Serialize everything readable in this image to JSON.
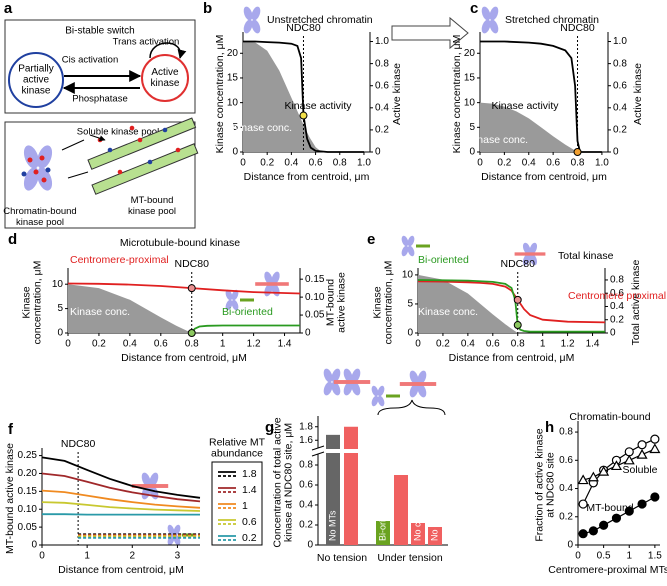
{
  "diagram": {
    "label": "a",
    "switch_title": "Bi-stable switch",
    "nodes": [
      [
        "Partially",
        "active",
        "kinase"
      ],
      [
        "Active",
        "kinase"
      ]
    ],
    "edges": [
      "Trans activation",
      "Cis activation",
      "Phosphatase"
    ],
    "pools": [
      [
        "Soluble kinase pool"
      ],
      [
        "Chromatin-bound",
        "kinase pool"
      ],
      [
        "MT-bound",
        "kinase pool"
      ]
    ]
  },
  "chart_data": [
    {
      "label": "b",
      "type": "line",
      "title": "Unstretched chromatin",
      "xlabel": "Distance from centroid, μm",
      "ylabel": "Kinase concentration, μM",
      "y2label": "Active kinase",
      "xlim": [
        0,
        1.05
      ],
      "xticks": [
        0,
        0.2,
        0.4,
        0.6,
        0.8,
        {
          "value": 1,
          "label": "1.0"
        }
      ],
      "ylim": [
        0,
        23.5
      ],
      "yticks": [
        0,
        5,
        10,
        15,
        20
      ],
      "y2lim": [
        0,
        1.05
      ],
      "y2ticks": [
        0,
        0.2,
        0.4,
        0.6,
        0.8,
        {
          "value": 1,
          "label": "1.0"
        }
      ],
      "series": [
        {
          "name": "Kinase conc.",
          "color": "#9a9a9a",
          "style": "area",
          "x": [
            0,
            0.1,
            0.2,
            0.3,
            0.4,
            0.5,
            0.55,
            0.6,
            0.65
          ],
          "values": [
            22.5,
            22.2,
            20.5,
            16.5,
            11,
            5.5,
            3,
            1,
            0
          ]
        },
        {
          "name": "Kinase activity",
          "color": "#000000",
          "style": "line",
          "axis": "y2",
          "x": [
            0,
            0.1,
            0.2,
            0.3,
            0.4,
            0.45,
            0.48,
            0.5,
            0.53,
            0.56,
            0.6,
            0.7,
            0.8,
            0.9,
            1.0
          ],
          "values": [
            1,
            1,
            0.995,
            0.99,
            0.98,
            0.96,
            0.85,
            0.33,
            0.12,
            0.04,
            0.01,
            0,
            0,
            0,
            0
          ]
        }
      ],
      "vline": {
        "label": "NDC80",
        "x": 0.5
      },
      "markers": [
        {
          "x": 0.5,
          "y": 0.33,
          "axis": "y2",
          "color": "#f2e04a"
        }
      ]
    },
    {
      "label": "c",
      "type": "line",
      "title": "Stretched chromatin",
      "xlabel": "Distance from centroid, μm",
      "ylabel": "Kinase concentration, μM",
      "y2label": "Active kinase",
      "xlim": [
        0,
        1.05
      ],
      "xticks": [
        0,
        0.2,
        0.4,
        0.6,
        0.8,
        {
          "value": 1,
          "label": "1.0"
        }
      ],
      "ylim": [
        0,
        23.5
      ],
      "yticks": [
        0,
        5,
        10,
        15,
        20
      ],
      "y2lim": [
        0,
        1.05
      ],
      "y2ticks": [
        0,
        0.2,
        0.4,
        0.6,
        0.8,
        {
          "value": 1,
          "label": "1.0"
        }
      ],
      "series": [
        {
          "name": "Kinase conc.",
          "color": "#9a9a9a",
          "style": "area",
          "x": [
            0,
            0.1,
            0.2,
            0.3,
            0.4,
            0.5,
            0.6,
            0.7,
            0.8
          ],
          "values": [
            10,
            9.8,
            9.2,
            8.2,
            6.8,
            5,
            3.2,
            1.5,
            0
          ]
        },
        {
          "name": "Kinase activity",
          "color": "#000000",
          "style": "line",
          "axis": "y2",
          "x": [
            0,
            0.2,
            0.4,
            0.5,
            0.6,
            0.7,
            0.75,
            0.78,
            0.8,
            0.82,
            1.0
          ],
          "values": [
            1,
            1,
            0.99,
            0.98,
            0.96,
            0.92,
            0.85,
            0.6,
            0.1,
            0,
            0
          ]
        }
      ],
      "vline": {
        "label": "NDC80",
        "x": 0.8
      },
      "markers": [
        {
          "x": 0.8,
          "y": 0,
          "axis": "y2",
          "color": "#f2a030"
        }
      ]
    },
    {
      "label": "d",
      "type": "line",
      "title": "Microtubule-bound kinase",
      "xlabel": "Distance from centroid, μM",
      "ylabel": [
        "Kinase",
        "concentration, μM"
      ],
      "y2label": [
        "MT-bound",
        "active kinase"
      ],
      "xlim": [
        0,
        1.5
      ],
      "xticks": [
        0,
        0.2,
        0.4,
        0.6,
        0.8,
        1,
        1.2,
        1.4
      ],
      "ylim": [
        0,
        12.5
      ],
      "yticks": [
        0,
        5,
        10
      ],
      "y2lim": [
        0,
        0.17
      ],
      "y2ticks": [
        0,
        0.05,
        {
          "value": 0.1,
          "label": "0.10"
        },
        0.15
      ],
      "series": [
        {
          "name": "Kinase conc.",
          "color": "#9a9a9a",
          "style": "area",
          "x": [
            0,
            0.2,
            0.4,
            0.6,
            0.7,
            0.8
          ],
          "values": [
            10,
            9.2,
            6.8,
            3.2,
            1.5,
            0
          ]
        },
        {
          "name": "Centromere-proximal",
          "color": "#e02020",
          "style": "line",
          "axis": "y2",
          "x": [
            0,
            0.2,
            0.4,
            0.6,
            0.8,
            1.0,
            1.2,
            1.5
          ],
          "values": [
            0.138,
            0.137,
            0.135,
            0.131,
            0.125,
            0.119,
            0.114,
            0.11
          ]
        },
        {
          "name": "Bi-oriented",
          "color": "#2a9a20",
          "style": "line",
          "axis": "y2",
          "x": [
            0.8,
            0.82,
            0.85,
            0.9,
            1.0,
            1.5
          ],
          "values": [
            0,
            0.012,
            0.018,
            0.02,
            0.021,
            0.021
          ]
        }
      ],
      "vline": {
        "label": "NDC80",
        "x": 0.8
      },
      "markers": [
        {
          "x": 0.8,
          "y": 0.125,
          "axis": "y2",
          "color": "#e89090"
        },
        {
          "x": 0.8,
          "y": 0,
          "axis": "y2",
          "color": "#8cc860"
        }
      ]
    },
    {
      "label": "e",
      "type": "line",
      "title": "Total kinase",
      "xlabel": "Distance from centroid, μM",
      "ylabel": [
        "Kinase",
        "concentration, μM"
      ],
      "y2label": "Total active kinase",
      "xlim": [
        0,
        1.5
      ],
      "xticks": [
        0,
        0.2,
        0.4,
        0.6,
        0.8,
        1,
        1.2,
        1.4
      ],
      "ylim": [
        0,
        10.5
      ],
      "yticks": [
        0,
        5,
        10
      ],
      "y2lim": [
        0,
        0.92
      ],
      "y2ticks": [
        0,
        0.2,
        0.4,
        0.6,
        0.8
      ],
      "series": [
        {
          "name": "Kinase conc.",
          "color": "#9a9a9a",
          "style": "area",
          "x": [
            0,
            0.2,
            0.4,
            0.6,
            0.7,
            0.8
          ],
          "values": [
            10,
            9.2,
            6.8,
            3.2,
            1.5,
            0
          ]
        },
        {
          "name": "Centromere proximal",
          "color": "#e02020",
          "style": "line",
          "axis": "y2",
          "x": [
            0,
            0.2,
            0.4,
            0.5,
            0.6,
            0.7,
            0.75,
            0.8,
            0.85,
            0.9,
            1.0,
            1.2,
            1.5
          ],
          "values": [
            0.78,
            0.775,
            0.765,
            0.755,
            0.74,
            0.7,
            0.64,
            0.5,
            0.36,
            0.27,
            0.2,
            0.17,
            0.16
          ]
        },
        {
          "name": "Bi-oriented",
          "color": "#2a9a20",
          "style": "line",
          "axis": "y2",
          "x": [
            0,
            0.2,
            0.4,
            0.6,
            0.7,
            0.75,
            0.78,
            0.8,
            0.82,
            0.85,
            0.9,
            1.5
          ],
          "values": [
            0.8,
            0.795,
            0.79,
            0.77,
            0.74,
            0.68,
            0.5,
            0.12,
            0.05,
            0.03,
            0.02,
            0.02
          ]
        }
      ],
      "vline": {
        "label": "NDC80",
        "x": 0.8
      },
      "markers": [
        {
          "x": 0.8,
          "y": 0.5,
          "axis": "y2",
          "color": "#e89090"
        },
        {
          "x": 0.8,
          "y": 0.12,
          "axis": "y2",
          "color": "#8cc860"
        }
      ]
    },
    {
      "label": "f",
      "type": "line",
      "xlabel": "Distance from centroid, μM",
      "ylabel": "MT-bound active kinase",
      "xlim": [
        0,
        3.5
      ],
      "xticks": [
        0,
        1,
        2,
        3
      ],
      "ylim": [
        0,
        0.26
      ],
      "yticks": [
        0,
        0.05,
        {
          "value": 0.1,
          "label": "0.10"
        },
        0.15,
        {
          "value": 0.2,
          "label": "0.20"
        },
        0.25
      ],
      "legend": {
        "title": [
          "Relative MT",
          "abundance"
        ]
      },
      "series": [
        {
          "name": "1.8",
          "color": "#000000",
          "style": "line",
          "x": [
            0,
            0.5,
            1,
            1.5,
            2,
            2.5,
            3,
            3.5
          ],
          "values": [
            0.245,
            0.235,
            0.21,
            0.185,
            0.165,
            0.15,
            0.14,
            0.132
          ]
        },
        {
          "name": "1.4",
          "color": "#a0282a",
          "style": "line",
          "x": [
            0,
            0.5,
            1,
            1.5,
            2,
            2.5,
            3,
            3.5
          ],
          "values": [
            0.2,
            0.193,
            0.177,
            0.16,
            0.147,
            0.137,
            0.128,
            0.122
          ]
        },
        {
          "name": "1",
          "color": "#f08a20",
          "style": "line",
          "x": [
            0,
            0.5,
            1,
            1.5,
            2,
            2.5,
            3,
            3.5
          ],
          "values": [
            0.152,
            0.148,
            0.138,
            0.128,
            0.12,
            0.113,
            0.108,
            0.104
          ]
        },
        {
          "name": "0.6",
          "color": "#c8c830",
          "style": "line",
          "x": [
            0,
            0.5,
            1,
            1.5,
            2,
            2.5,
            3,
            3.5
          ],
          "values": [
            0.12,
            0.118,
            0.112,
            0.106,
            0.102,
            0.099,
            0.097,
            0.095
          ]
        },
        {
          "name": "0.2",
          "color": "#2a9aa8",
          "style": "line",
          "x": [
            0,
            0.5,
            1,
            1.5,
            2,
            2.5,
            3,
            3.5
          ],
          "values": [
            0.086,
            0.086,
            0.085,
            0.085,
            0.085,
            0.085,
            0.085,
            0.085
          ]
        },
        {
          "color": "#000000",
          "style": "dashed",
          "x": [
            0.8,
            1.5,
            2.5,
            3.5
          ],
          "values": [
            0.03,
            0.03,
            0.03,
            0.03
          ]
        },
        {
          "color": "#a0282a",
          "style": "dashed",
          "x": [
            0.8,
            1.5,
            2.5,
            3.5
          ],
          "values": [
            0.028,
            0.028,
            0.028,
            0.028
          ]
        },
        {
          "color": "#f08a20",
          "style": "dashed",
          "x": [
            0.8,
            1.5,
            2.5,
            3.5
          ],
          "values": [
            0.026,
            0.026,
            0.026,
            0.026
          ]
        },
        {
          "color": "#c8c830",
          "style": "dashed",
          "x": [
            0.8,
            1.5,
            2.5,
            3.5
          ],
          "values": [
            0.024,
            0.024,
            0.024,
            0.024
          ]
        },
        {
          "color": "#2a9aa8",
          "style": "dashed",
          "x": [
            0.8,
            1.5,
            2.5,
            3.5
          ],
          "values": [
            0.02,
            0.02,
            0.02,
            0.02
          ]
        }
      ],
      "vline": {
        "label": "NDC80",
        "x": 0.8
      }
    },
    {
      "label": "g",
      "type": "bar",
      "ylabel": [
        "Concentration of total active",
        "kinase at NDC80 site, μM"
      ],
      "ylim": [
        0,
        1.9
      ],
      "ybreak": [
        0.9,
        1.5
      ],
      "yticks": [
        0,
        0.2,
        0.4,
        0.6,
        0.8,
        1.6,
        1.8
      ],
      "categories": [
        "No MTs",
        null,
        "Bi-oriented",
        null,
        "No chromatin pool",
        "No soluble pool"
      ],
      "values": [
        1.68,
        1.8,
        0.24,
        0.7,
        0.22,
        0.18
      ],
      "colors": [
        "#666666",
        "#f06060",
        "#6aa320",
        "#f06060",
        "#f06060",
        "#f06060"
      ],
      "groups": [
        "No tension",
        "Under tension"
      ]
    },
    {
      "label": "h",
      "type": "scatter",
      "xlabel": "Centromere-proximal MTs, μM",
      "ylabel": [
        "Fraction of active kinase",
        "at NDC80 site"
      ],
      "xlim": [
        0,
        1.6
      ],
      "xticks": [
        0,
        0.5,
        1,
        1.5
      ],
      "ylim": [
        0,
        0.85
      ],
      "yticks": [
        0,
        0.2,
        0.4,
        0.6,
        0.8
      ],
      "series": [
        {
          "name": "Chromatin-bound",
          "color": "#000000",
          "marker": "open-circle",
          "x": [
            0.1,
            0.3,
            0.5,
            0.75,
            1,
            1.25,
            1.5
          ],
          "values": [
            0.29,
            0.44,
            0.53,
            0.6,
            0.66,
            0.71,
            0.75
          ]
        },
        {
          "name": "Soluble",
          "color": "#000000",
          "marker": "open-triangle",
          "x": [
            0.1,
            0.3,
            0.5,
            0.75,
            1,
            1.25,
            1.5
          ],
          "values": [
            0.46,
            0.48,
            0.52,
            0.56,
            0.6,
            0.64,
            0.68
          ]
        },
        {
          "name": "MT-bound",
          "color": "#000000",
          "marker": "filled-circle",
          "x": [
            0.1,
            0.3,
            0.5,
            0.75,
            1,
            1.25,
            1.5
          ],
          "values": [
            0.08,
            0.1,
            0.14,
            0.19,
            0.24,
            0.29,
            0.34
          ]
        }
      ]
    }
  ]
}
